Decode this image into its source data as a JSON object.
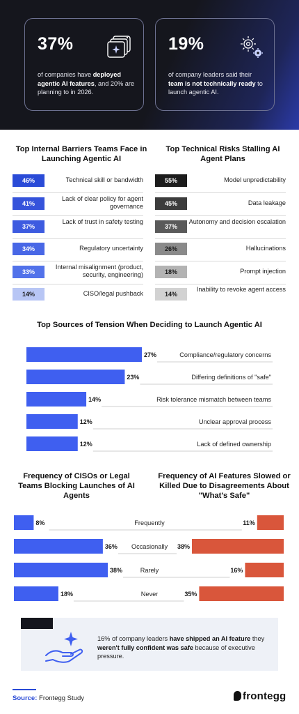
{
  "hero": {
    "left": {
      "pct": "37%",
      "text_pre": "of companies have ",
      "text_bold": "deployed agentic AI features",
      "text_post": ", and 20% are planning to in 2026."
    },
    "right": {
      "pct": "19%",
      "text_pre": "of company leaders said their ",
      "text_bold": "team is not technically ready",
      "text_post": " to launch agentic AI."
    },
    "icons": [
      "windows-sparkle-icon",
      "gears-icon"
    ]
  },
  "barriers": {
    "title": "Top Internal Barriers Teams Face in Launching Agentic AI",
    "items": [
      {
        "pct": "46%",
        "label": "Technical skill or bandwidth",
        "color": "#2a4bd7"
      },
      {
        "pct": "41%",
        "label": "Lack of clear policy for agent governance",
        "color": "#3553db"
      },
      {
        "pct": "37%",
        "label": "Lack of trust in safety testing",
        "color": "#3d5be0"
      },
      {
        "pct": "34%",
        "label": "Regulatory uncertainty",
        "color": "#4867e6"
      },
      {
        "pct": "33%",
        "label": "Internal misalignment (product, security, engineering)",
        "color": "#5272ea"
      },
      {
        "pct": "14%",
        "label": "CISO/legal pushback",
        "color": "#b8c6f5"
      }
    ]
  },
  "risks": {
    "title": "Top Technical Risks Stalling AI Agent Plans",
    "items": [
      {
        "pct": "55%",
        "label": "Model unpredictability",
        "color": "#1c1c1c"
      },
      {
        "pct": "45%",
        "label": "Data leakage",
        "color": "#3c3c3c"
      },
      {
        "pct": "37%",
        "label": "Autonomy and decision escalation",
        "color": "#5a5a5a"
      },
      {
        "pct": "26%",
        "label": "Hallucinations",
        "color": "#8a8a8a"
      },
      {
        "pct": "18%",
        "label": "Prompt injection",
        "color": "#b3b3b3"
      },
      {
        "pct": "14%",
        "label": "Inability to revoke agent access",
        "color": "#d2d2d2"
      }
    ]
  },
  "colors": {
    "blue": "#3f5ff0",
    "orange": "#d9563b",
    "dark": "#15161d"
  },
  "chart_data": [
    {
      "type": "bar",
      "title": "Top Sources of Tension When Deciding to Launch Agentic AI",
      "categories": [
        "Compliance/regulatory concerns",
        "Differing definitions of \"safe\"",
        "Risk tolerance mismatch between teams",
        "Unclear approval process",
        "Lack of defined ownership"
      ],
      "values": [
        27,
        23,
        14,
        12,
        12
      ],
      "value_labels": [
        "27%",
        "23%",
        "14%",
        "12%",
        "12%"
      ],
      "ylim": [
        0,
        30
      ]
    },
    {
      "type": "bar",
      "title": "Frequency of CISOs or Legal Teams Blocking Launches of AI Agents",
      "categories": [
        "Frequently",
        "Occasionally",
        "Rarely",
        "Never"
      ],
      "values": [
        8,
        36,
        38,
        18
      ],
      "value_labels": [
        "8%",
        "36%",
        "38%",
        "18%"
      ],
      "ylim": [
        0,
        40
      ]
    },
    {
      "type": "bar",
      "title": "Frequency of AI Features Slowed or Killed Due to Disagreements About \"What's Safe\"",
      "categories": [
        "Frequently",
        "Occasionally",
        "Rarely",
        "Never"
      ],
      "values": [
        11,
        38,
        16,
        35
      ],
      "value_labels": [
        "11%",
        "38%",
        "16%",
        "35%"
      ],
      "ylim": [
        0,
        40
      ]
    }
  ],
  "note": {
    "text_pre": "16% of company leaders ",
    "text_bold1": "have shipped an AI feature",
    "text_mid": " they ",
    "text_bold2": "weren't fully confident was safe",
    "text_post": " because of executive pressure.",
    "icon": "hand-sparkle-icon"
  },
  "source": {
    "label": "Source:",
    "value": "Frontegg Study"
  },
  "logo": {
    "text": "frontegg"
  }
}
